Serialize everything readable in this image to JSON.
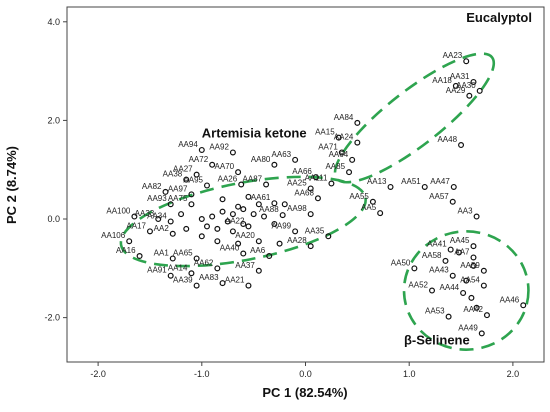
{
  "chart_data": {
    "type": "scatter",
    "title": "",
    "xlabel": "PC 1 (82.54%)",
    "ylabel": "PC 2 (8.74%)",
    "xlim": [
      -2.3,
      2.3
    ],
    "ylim": [
      -2.9,
      4.3
    ],
    "xticks": [
      -2.0,
      -1.0,
      0.0,
      1.0,
      2.0
    ],
    "yticks": [
      -2.0,
      0.0,
      2.0,
      4.0
    ],
    "tick_labels_x": [
      "-2.0",
      "-1.0",
      "0.0",
      "1.0",
      "2.0"
    ],
    "tick_labels_y": [
      "-2.0",
      "0.0",
      "2.0",
      "4.0"
    ],
    "grid": false,
    "marker": "open-circle",
    "cluster_color": "#2ea44f",
    "point_color": "#111111",
    "points": [
      {
        "label": "AA23",
        "x": 1.55,
        "y": 3.2
      },
      {
        "label": "AA18",
        "x": 1.45,
        "y": 2.7
      },
      {
        "label": "AA31",
        "x": 1.62,
        "y": 2.78
      },
      {
        "label": "AA29",
        "x": 1.58,
        "y": 2.5
      },
      {
        "label": "AA30",
        "x": 1.68,
        "y": 2.6
      },
      {
        "label": "AA84",
        "x": 0.5,
        "y": 1.95
      },
      {
        "label": "AA15",
        "x": 0.32,
        "y": 1.65
      },
      {
        "label": "AA24",
        "x": 0.5,
        "y": 1.55
      },
      {
        "label": "AA71",
        "x": 0.35,
        "y": 1.35
      },
      {
        "label": "AA64",
        "x": 0.45,
        "y": 1.2
      },
      {
        "label": "AA48",
        "x": 1.5,
        "y": 1.5
      },
      {
        "label": "AA85",
        "x": 0.42,
        "y": 0.95
      },
      {
        "label": "AA66",
        "x": 0.1,
        "y": 0.85
      },
      {
        "label": "AA111",
        "x": 0.25,
        "y": 0.72
      },
      {
        "label": "AA13",
        "x": 0.82,
        "y": 0.65
      },
      {
        "label": "AA51",
        "x": 1.15,
        "y": 0.65
      },
      {
        "label": "AA47",
        "x": 1.43,
        "y": 0.65
      },
      {
        "label": "AA55",
        "x": 0.65,
        "y": 0.35
      },
      {
        "label": "AA57",
        "x": 1.42,
        "y": 0.35
      },
      {
        "label": "AA5",
        "x": 0.72,
        "y": 0.12
      },
      {
        "label": "AA3",
        "x": 1.65,
        "y": 0.05
      },
      {
        "label": "AA63",
        "x": -0.1,
        "y": 1.2
      },
      {
        "label": "AA80",
        "x": -0.3,
        "y": 1.1
      },
      {
        "label": "AA94",
        "x": -1.0,
        "y": 1.4
      },
      {
        "label": "AA92",
        "x": -0.7,
        "y": 1.35
      },
      {
        "label": "AA72",
        "x": -0.9,
        "y": 1.1
      },
      {
        "label": "AA27",
        "x": -1.05,
        "y": 0.9
      },
      {
        "label": "AA70",
        "x": -0.65,
        "y": 0.95
      },
      {
        "label": "AA38",
        "x": -1.15,
        "y": 0.8
      },
      {
        "label": "AA26",
        "x": -0.62,
        "y": 0.7
      },
      {
        "label": "AA87",
        "x": -0.38,
        "y": 0.7
      },
      {
        "label": "AA95",
        "x": -0.95,
        "y": 0.68
      },
      {
        "label": "AA82",
        "x": -1.35,
        "y": 0.55
      },
      {
        "label": "AA97",
        "x": -1.1,
        "y": 0.5
      },
      {
        "label": "AA25",
        "x": 0.05,
        "y": 0.62
      },
      {
        "label": "AA68",
        "x": 0.12,
        "y": 0.42
      },
      {
        "label": "AA61",
        "x": -0.3,
        "y": 0.32
      },
      {
        "label": "AA93",
        "x": -1.3,
        "y": 0.3
      },
      {
        "label": "AA75",
        "x": -1.1,
        "y": 0.3
      },
      {
        "label": "AA98",
        "x": 0.05,
        "y": 0.1
      },
      {
        "label": "AA88",
        "x": -0.22,
        "y": 0.08
      },
      {
        "label": "AA100",
        "x": -1.65,
        "y": 0.05
      },
      {
        "label": "AA33",
        "x": -1.42,
        "y": 0.0
      },
      {
        "label": "AA34",
        "x": -1.3,
        "y": -0.05
      },
      {
        "label": "AA22",
        "x": -0.55,
        "y": -0.15
      },
      {
        "label": "AA17",
        "x": -1.5,
        "y": -0.25
      },
      {
        "label": "AA2",
        "x": -1.28,
        "y": -0.3
      },
      {
        "label": "AA99",
        "x": -0.1,
        "y": -0.25
      },
      {
        "label": "AA35",
        "x": 0.22,
        "y": -0.35
      },
      {
        "label": "AA106",
        "x": -1.7,
        "y": -0.45
      },
      {
        "label": "AA20",
        "x": -0.45,
        "y": -0.45
      },
      {
        "label": "AA28",
        "x": 0.05,
        "y": -0.55
      },
      {
        "label": "AA1",
        "x": -1.28,
        "y": -0.8
      },
      {
        "label": "AA16",
        "x": -1.6,
        "y": -0.75
      },
      {
        "label": "AA65",
        "x": -1.05,
        "y": -0.8
      },
      {
        "label": "AA40",
        "x": -0.6,
        "y": -0.7
      },
      {
        "label": "AA6",
        "x": -0.35,
        "y": -0.75
      },
      {
        "label": "AA62",
        "x": -0.85,
        "y": -1.0
      },
      {
        "label": "AA37",
        "x": -0.45,
        "y": -1.05
      },
      {
        "label": "AA14",
        "x": -1.1,
        "y": -1.1
      },
      {
        "label": "AA91",
        "x": -1.3,
        "y": -1.15
      },
      {
        "label": "AA39",
        "x": -1.05,
        "y": -1.35
      },
      {
        "label": "AA83",
        "x": -0.8,
        "y": -1.3
      },
      {
        "label": "AA21",
        "x": -0.55,
        "y": -1.35
      },
      {
        "label": "AA45",
        "x": 1.62,
        "y": -0.55
      },
      {
        "label": "AA41",
        "x": 1.4,
        "y": -0.62
      },
      {
        "label": "AA7",
        "x": 1.62,
        "y": -0.78
      },
      {
        "label": "AA58",
        "x": 1.35,
        "y": -0.85
      },
      {
        "label": "AA59",
        "x": 1.72,
        "y": -1.05
      },
      {
        "label": "AA50",
        "x": 1.05,
        "y": -1.0
      },
      {
        "label": "AA43",
        "x": 1.42,
        "y": -1.15
      },
      {
        "label": "AA54",
        "x": 1.72,
        "y": -1.35
      },
      {
        "label": "AA52",
        "x": 1.22,
        "y": -1.45
      },
      {
        "label": "AA44",
        "x": 1.52,
        "y": -1.5
      },
      {
        "label": "AA46",
        "x": 2.1,
        "y": -1.75
      },
      {
        "label": "AA42",
        "x": 1.75,
        "y": -1.95
      },
      {
        "label": "AA53",
        "x": 1.38,
        "y": -1.98
      },
      {
        "label": "AA49",
        "x": 1.7,
        "y": -2.32
      }
    ],
    "extra_points": [
      {
        "x": -0.6,
        "y": 0.2
      },
      {
        "x": -0.7,
        "y": 0.1
      },
      {
        "x": -0.8,
        "y": 0.15
      },
      {
        "x": -0.9,
        "y": 0.05
      },
      {
        "x": -0.75,
        "y": -0.05
      },
      {
        "x": -0.65,
        "y": 0.25
      },
      {
        "x": -0.5,
        "y": 0.1
      },
      {
        "x": -0.45,
        "y": 0.3
      },
      {
        "x": -0.95,
        "y": -0.15
      },
      {
        "x": -1.0,
        "y": 0.0
      },
      {
        "x": -0.85,
        "y": -0.2
      },
      {
        "x": -0.7,
        "y": -0.25
      },
      {
        "x": -0.6,
        "y": -0.1
      },
      {
        "x": -0.4,
        "y": 0.05
      },
      {
        "x": -1.15,
        "y": -0.2
      },
      {
        "x": -0.55,
        "y": 0.45
      },
      {
        "x": -0.8,
        "y": 0.4
      },
      {
        "x": -0.3,
        "y": -0.1
      },
      {
        "x": -0.2,
        "y": 0.3
      },
      {
        "x": -1.2,
        "y": 0.1
      },
      {
        "x": -1.0,
        "y": -0.35
      },
      {
        "x": -0.85,
        "y": -0.45
      },
      {
        "x": -0.25,
        "y": -0.5
      },
      {
        "x": -0.65,
        "y": -0.5
      },
      {
        "x": 1.62,
        "y": -0.95
      },
      {
        "x": 1.6,
        "y": -1.6
      },
      {
        "x": 1.65,
        "y": -1.8
      },
      {
        "x": 1.55,
        "y": -1.25
      },
      {
        "x": 1.48,
        "y": -0.68
      }
    ],
    "clusters": [
      {
        "name": "Eucalyptol",
        "center": [
          1.05,
          2.05
        ],
        "rx": 0.95,
        "ry": 0.55,
        "angle": 38,
        "label_at": [
          1.55,
          4.0
        ]
      },
      {
        "name": "Artemisia ketone",
        "center": [
          -0.6,
          -0.05
        ],
        "rx": 1.2,
        "ry": 0.78,
        "angle": 11,
        "label_at": [
          -1.0,
          1.65
        ]
      },
      {
        "name": "β-Selinene",
        "center": [
          1.55,
          -1.45
        ],
        "rx": 0.6,
        "ry": 1.2,
        "angle": 0,
        "label_at": [
          0.95,
          -2.55
        ]
      }
    ]
  }
}
